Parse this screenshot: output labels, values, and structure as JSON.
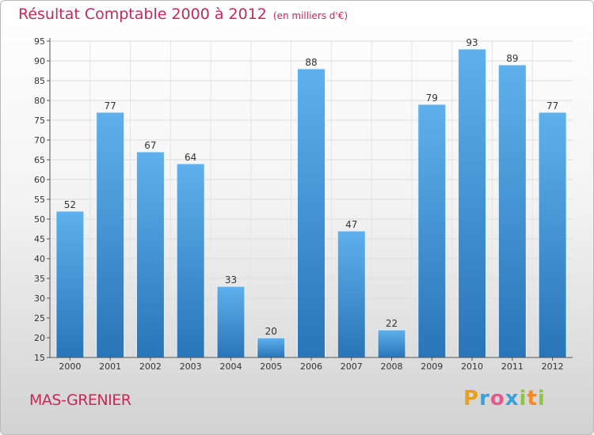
{
  "chart_data": {
    "type": "bar",
    "title": "Résultat Comptable 2000 à 2012",
    "subtitle": "(en milliers d'€)",
    "categories": [
      "2000",
      "2001",
      "2002",
      "2003",
      "2004",
      "2005",
      "2006",
      "2007",
      "2008",
      "2009",
      "2010",
      "2011",
      "2012"
    ],
    "values": [
      52,
      77,
      67,
      64,
      33,
      20,
      88,
      47,
      22,
      79,
      93,
      89,
      77
    ],
    "yticks": [
      15,
      20,
      25,
      30,
      35,
      40,
      45,
      50,
      55,
      60,
      65,
      70,
      75,
      80,
      85,
      90,
      95
    ],
    "ylim": [
      15,
      95
    ],
    "xlabel": "",
    "ylabel": "",
    "grid": true,
    "bar_color": "#3a8fd4"
  },
  "location": "MAS-GRENIER",
  "brand": {
    "letters": [
      "P",
      "r",
      "o",
      "x",
      "i",
      "t",
      "i"
    ],
    "colors": [
      "#e8a020",
      "#3aa0d8",
      "#e05a8a",
      "#3aa0d8",
      "#8cc63f",
      "#f08a24",
      "#8cc63f"
    ]
  }
}
